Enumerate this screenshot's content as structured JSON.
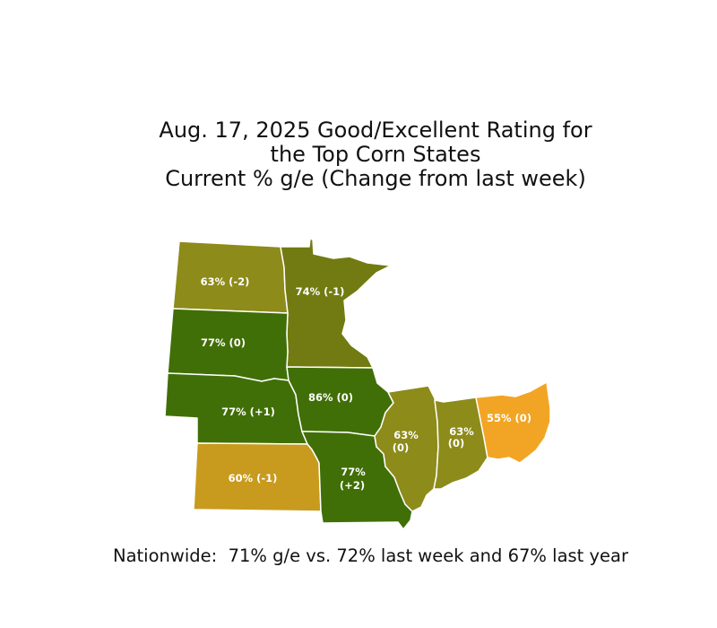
{
  "title": {
    "line1": "Aug. 17, 2025 Good/Excellent Rating for",
    "line2": "the Top Corn States",
    "line3": "Current % g/e (Change from last week)"
  },
  "states": {
    "north_dakota": {
      "label": "63% (-2)",
      "rating": 63,
      "change": -2,
      "color": "#8d8b1a"
    },
    "minnesota": {
      "label": "74% (-1)",
      "rating": 74,
      "change": -1,
      "color": "#717b11"
    },
    "south_dakota": {
      "label": "77% (0)",
      "rating": 77,
      "change": 0,
      "color": "#416f07"
    },
    "nebraska": {
      "label": "77% (+1)",
      "rating": 77,
      "change": 1,
      "color": "#416f07"
    },
    "iowa": {
      "label": "86% (0)",
      "rating": 86,
      "change": 0,
      "color": "#416f07"
    },
    "kansas": {
      "label": "60% (-1)",
      "rating": 60,
      "change": -1,
      "color": "#c89a1e"
    },
    "missouri": {
      "line1": "77%",
      "line2": "(+2)",
      "rating": 77,
      "change": 2,
      "color": "#416f07"
    },
    "illinois": {
      "line1": "63%",
      "line2": "(0)",
      "rating": 63,
      "change": 0,
      "color": "#8d8b1a"
    },
    "indiana": {
      "line1": "63%",
      "line2": "(0)",
      "rating": 63,
      "change": 0,
      "color": "#8d8b1a"
    },
    "ohio": {
      "label": "55% (0)",
      "rating": 55,
      "change": 0,
      "color": "#f2a524"
    }
  },
  "footer": {
    "nationwide": "Nationwide:  71% g/e vs. 72% last week and 67% last year"
  }
}
